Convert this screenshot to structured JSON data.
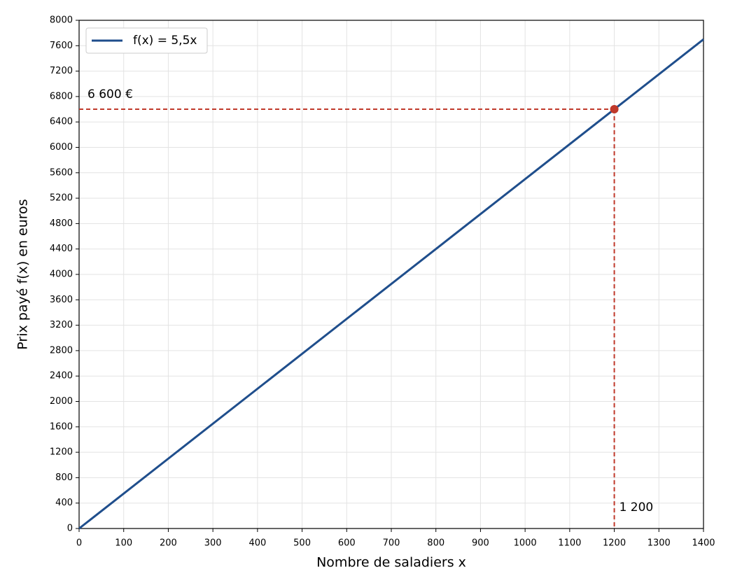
{
  "chart_data": {
    "type": "line",
    "x_label": "Nombre de saladiers x",
    "y_label": "Prix payé f(x) en euros",
    "x": [
      0,
      1400
    ],
    "series": [
      {
        "name": "f(x) = 5,5x",
        "color": "#1f4e8c",
        "values": [
          0,
          7700
        ]
      }
    ],
    "xlim": [
      0,
      1400
    ],
    "ylim": [
      0,
      8000
    ],
    "xticks": [
      0,
      100,
      200,
      300,
      400,
      500,
      600,
      700,
      800,
      900,
      1000,
      1100,
      1200,
      1300,
      1400
    ],
    "yticks": [
      0,
      400,
      800,
      1200,
      1600,
      2000,
      2400,
      2800,
      3200,
      3600,
      4000,
      4400,
      4800,
      5200,
      5600,
      6000,
      6400,
      6800,
      7200,
      7600,
      8000
    ],
    "grid": true,
    "legend": "upper left",
    "annotation": {
      "x": 1200,
      "y": 6600,
      "x_label": "1 200",
      "y_label": "6 600 €",
      "color": "#c0392b"
    }
  }
}
